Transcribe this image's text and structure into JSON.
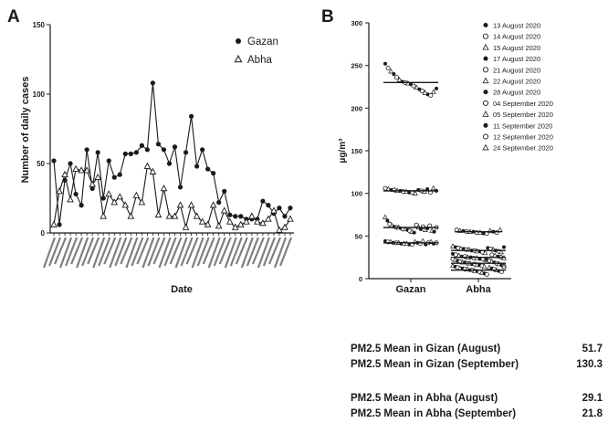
{
  "chart_data": [
    {
      "panel": "A",
      "type": "line",
      "xlabel": "Date",
      "ylabel": "Number of daily cases",
      "ylim": [
        0,
        150
      ],
      "yticks": [
        0,
        50,
        100,
        150
      ],
      "legend_position": "top-right",
      "series": [
        {
          "name": "Gazan",
          "marker": "filled-circle",
          "color": "#1a1a1a",
          "values": [
            52,
            6,
            38,
            50,
            28,
            20,
            60,
            32,
            58,
            25,
            52,
            40,
            42,
            57,
            57,
            58,
            63,
            60,
            108,
            64,
            60,
            50,
            62,
            33,
            58,
            84,
            48,
            60,
            46,
            43,
            22,
            30,
            13,
            12,
            12,
            10,
            10,
            10,
            23,
            20,
            14,
            18,
            12,
            18
          ]
        },
        {
          "name": "Abha",
          "marker": "open-triangle",
          "color": "#1a1a1a",
          "values": [
            6,
            30,
            42,
            24,
            46,
            45,
            45,
            35,
            40,
            12,
            28,
            22,
            26,
            20,
            12,
            27,
            22,
            48,
            44,
            13,
            32,
            12,
            12,
            20,
            4,
            20,
            12,
            8,
            6,
            20,
            5,
            16,
            8,
            4,
            6,
            8,
            12,
            8,
            7,
            10,
            16,
            2,
            4,
            10
          ]
        }
      ]
    },
    {
      "panel": "B",
      "type": "scatter",
      "xlabel": "",
      "ylabel": "µg/m³",
      "categories": [
        "Gazan",
        "Abha"
      ],
      "ylim": [
        0,
        300
      ],
      "yticks": [
        0,
        50,
        100,
        150,
        200,
        250,
        300
      ],
      "legend_position": "top-right",
      "legend": [
        "13 August 2020",
        "14 August 2020",
        "15 August 2020",
        "17 August 2020",
        "21 August 2020",
        "22 August 2020",
        "28 August 2020",
        "04 September 2020",
        "05 September 2020",
        "11 September 2020",
        "12 September 2020",
        "24 September 2020"
      ],
      "series": [
        {
          "group": "Gazan",
          "center": 230,
          "values": [
            252,
            247,
            243,
            240,
            236,
            233,
            231,
            230,
            229,
            228,
            226,
            224,
            222,
            220,
            218,
            216,
            215,
            219,
            223
          ]
        },
        {
          "group": "Gazan",
          "center": 103,
          "values": [
            106,
            105,
            104,
            104,
            103,
            103,
            102,
            102,
            101,
            101,
            100,
            104,
            103,
            102,
            105,
            101,
            106,
            103
          ]
        },
        {
          "group": "Gazan",
          "center": 60,
          "values": [
            72,
            68,
            64,
            62,
            61,
            60,
            60,
            59,
            58,
            58,
            57,
            56,
            55,
            54,
            63,
            60,
            58,
            61,
            57,
            59,
            62,
            56,
            55,
            60
          ]
        },
        {
          "group": "Gazan",
          "center": 42,
          "values": [
            44,
            43,
            43,
            42,
            42,
            42,
            41,
            41,
            41,
            40,
            40,
            43,
            42,
            41,
            44,
            40,
            42,
            43,
            41,
            42
          ]
        },
        {
          "group": "Abha",
          "center": 55,
          "values": [
            57,
            56,
            56,
            55,
            55,
            55,
            54,
            54,
            53,
            53,
            56,
            55,
            54,
            57
          ]
        },
        {
          "group": "Abha",
          "center": 33,
          "values": [
            38,
            37,
            36,
            35,
            35,
            34,
            34,
            33,
            33,
            32,
            32,
            31,
            30,
            36,
            35,
            34,
            33,
            32,
            31,
            37
          ]
        },
        {
          "group": "Abha",
          "center": 25,
          "values": [
            29,
            28,
            27,
            26,
            26,
            25,
            25,
            24,
            24,
            23,
            23,
            22,
            21,
            28,
            27,
            26,
            25,
            24
          ]
        },
        {
          "group": "Abha",
          "center": 18,
          "values": [
            23,
            22,
            21,
            20,
            19,
            19,
            18,
            18,
            17,
            17,
            16,
            16,
            15,
            14,
            22,
            21,
            20,
            19,
            18,
            17,
            16,
            15
          ]
        },
        {
          "group": "Abha",
          "center": 10,
          "values": [
            15,
            14,
            13,
            12,
            12,
            11,
            11,
            10,
            10,
            9,
            9,
            8,
            7,
            6,
            5,
            13,
            12,
            11,
            10,
            9,
            8,
            14
          ]
        }
      ]
    }
  ],
  "panel_labels": {
    "a": "A",
    "b": "B"
  },
  "stats": [
    {
      "label": "PM2.5 Mean in Gizan (August)",
      "value": "51.7"
    },
    {
      "label": "PM2.5 Mean in Gizan (September)",
      "value": "130.3"
    },
    {
      "label": "PM2.5 Mean in Abha (August)",
      "value": "29.1"
    },
    {
      "label": "PM2.5 Mean in Abha (September)",
      "value": "21.8"
    }
  ]
}
